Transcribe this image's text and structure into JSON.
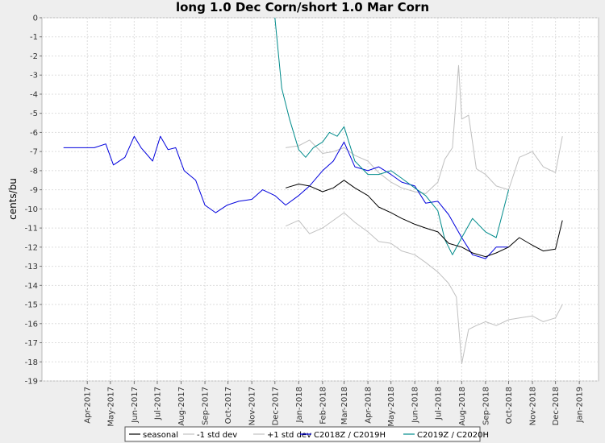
{
  "chart_data": {
    "type": "line",
    "title": "long 1.0 Dec Corn/short 1.0 Mar Corn",
    "ylabel": "cents/bu",
    "xlabel": "",
    "ylim": [
      -19,
      0
    ],
    "yticks": [
      "0",
      "-1",
      "-2",
      "-3",
      "-4",
      "-5",
      "-6",
      "-7",
      "-8",
      "-9",
      "-10",
      "-11",
      "-12",
      "-13",
      "-14",
      "-15",
      "-16",
      "-17",
      "-18",
      "-19"
    ],
    "xticks": [
      "Apr-2017",
      "May-2017",
      "Jun-2017",
      "Jul-2017",
      "Aug-2017",
      "Sep-2017",
      "Oct-2017",
      "Nov-2017",
      "Dec-2017",
      "Jan-2018",
      "Feb-2018",
      "Mar-2018",
      "Apr-2018",
      "May-2018",
      "Jun-2018",
      "Jul-2018",
      "Aug-2018",
      "Sep-2018",
      "Oct-2018",
      "Nov-2018",
      "Dec-2018",
      "Jan-2019"
    ],
    "grid": true,
    "legend_position": "bottom",
    "series": [
      {
        "name": "seasonal",
        "color": "#000000",
        "x": [
          "2017-12-15",
          "2018-01-01",
          "2018-01-15",
          "2018-02-01",
          "2018-02-15",
          "2018-03-01",
          "2018-03-15",
          "2018-04-01",
          "2018-04-15",
          "2018-05-01",
          "2018-05-15",
          "2018-06-01",
          "2018-06-15",
          "2018-07-01",
          "2018-07-15",
          "2018-08-01",
          "2018-08-15",
          "2018-09-01",
          "2018-09-15",
          "2018-10-01",
          "2018-10-15",
          "2018-11-01",
          "2018-11-15",
          "2018-12-01",
          "2018-12-10"
        ],
        "values": [
          -8.9,
          -8.7,
          -8.8,
          -9.1,
          -8.9,
          -8.5,
          -8.9,
          -9.3,
          -9.9,
          -10.2,
          -10.5,
          -10.8,
          -11.0,
          -11.2,
          -11.8,
          -12.0,
          -12.3,
          -12.5,
          -12.3,
          -12.0,
          -11.5,
          -11.9,
          -12.2,
          -12.1,
          -10.6
        ]
      },
      {
        "name": "-1 std dev",
        "color": "#c0c0c0",
        "x": [
          "2017-12-15",
          "2018-01-01",
          "2018-01-15",
          "2018-02-01",
          "2018-02-15",
          "2018-03-01",
          "2018-03-15",
          "2018-04-01",
          "2018-04-15",
          "2018-05-01",
          "2018-05-15",
          "2018-06-01",
          "2018-06-15",
          "2018-07-01",
          "2018-07-15",
          "2018-07-25",
          "2018-08-01",
          "2018-08-10",
          "2018-08-20",
          "2018-09-01",
          "2018-09-15",
          "2018-10-01",
          "2018-10-15",
          "2018-11-01",
          "2018-11-15",
          "2018-12-01",
          "2018-12-10"
        ],
        "values": [
          -10.9,
          -10.6,
          -11.3,
          -11.0,
          -10.6,
          -10.2,
          -10.7,
          -11.2,
          -11.7,
          -11.8,
          -12.2,
          -12.4,
          -12.8,
          -13.3,
          -13.9,
          -14.6,
          -18.1,
          -16.3,
          -16.1,
          -15.9,
          -16.1,
          -15.8,
          -15.7,
          -15.6,
          -15.9,
          -15.7,
          -15.0
        ]
      },
      {
        "name": "+1 std dev",
        "color": "#c0c0c0",
        "x": [
          "2017-12-15",
          "2018-01-01",
          "2018-01-15",
          "2018-02-01",
          "2018-02-15",
          "2018-03-01",
          "2018-03-15",
          "2018-04-01",
          "2018-04-15",
          "2018-05-01",
          "2018-05-15",
          "2018-06-01",
          "2018-06-15",
          "2018-07-01",
          "2018-07-10",
          "2018-07-20",
          "2018-07-28",
          "2018-08-01",
          "2018-08-10",
          "2018-08-20",
          "2018-09-01",
          "2018-09-15",
          "2018-10-01",
          "2018-10-15",
          "2018-11-01",
          "2018-11-15",
          "2018-12-01",
          "2018-12-10"
        ],
        "values": [
          -6.8,
          -6.7,
          -6.4,
          -7.1,
          -7.0,
          -6.8,
          -7.2,
          -7.5,
          -8.1,
          -8.6,
          -8.9,
          -9.1,
          -9.2,
          -8.6,
          -7.4,
          -6.8,
          -2.5,
          -5.3,
          -5.1,
          -7.9,
          -8.2,
          -8.8,
          -9.0,
          -7.3,
          -7.0,
          -7.8,
          -8.1,
          -6.2
        ]
      },
      {
        "name": "C2018Z / C2019H",
        "color": "#0000dd",
        "x": [
          "2017-03-01",
          "2017-03-20",
          "2017-04-10",
          "2017-04-25",
          "2017-05-05",
          "2017-05-20",
          "2017-06-01",
          "2017-06-10",
          "2017-06-25",
          "2017-07-05",
          "2017-07-15",
          "2017-07-25",
          "2017-08-05",
          "2017-08-20",
          "2017-09-01",
          "2017-09-15",
          "2017-09-30",
          "2017-10-15",
          "2017-11-01",
          "2017-11-15",
          "2017-12-01",
          "2017-12-15",
          "2018-01-01",
          "2018-01-15",
          "2018-02-01",
          "2018-02-15",
          "2018-03-01",
          "2018-03-15",
          "2018-04-01",
          "2018-04-15",
          "2018-05-01",
          "2018-05-15",
          "2018-06-01",
          "2018-06-15",
          "2018-07-01",
          "2018-07-15",
          "2018-08-01",
          "2018-08-15",
          "2018-09-01",
          "2018-09-15",
          "2018-10-01"
        ],
        "values": [
          -6.8,
          -6.8,
          -6.8,
          -6.6,
          -7.7,
          -7.3,
          -6.2,
          -6.8,
          -7.5,
          -6.2,
          -6.9,
          -6.8,
          -8.0,
          -8.5,
          -9.8,
          -10.2,
          -9.8,
          -9.6,
          -9.5,
          -9.0,
          -9.3,
          -9.8,
          -9.3,
          -8.8,
          -8.0,
          -7.5,
          -6.5,
          -7.8,
          -8.0,
          -7.8,
          -8.2,
          -8.6,
          -8.8,
          -9.7,
          -9.6,
          -10.3,
          -11.5,
          -12.4,
          -12.6,
          -12.0,
          -12.0
        ]
      },
      {
        "name": "C2019Z / C2020H",
        "color": "#008b8b",
        "x": [
          "2017-12-01",
          "2017-12-10",
          "2017-12-20",
          "2018-01-01",
          "2018-01-10",
          "2018-01-20",
          "2018-02-01",
          "2018-02-10",
          "2018-02-20",
          "2018-03-01",
          "2018-03-15",
          "2018-04-01",
          "2018-04-15",
          "2018-05-01",
          "2018-05-15",
          "2018-06-01",
          "2018-06-15",
          "2018-07-01",
          "2018-07-10",
          "2018-07-20",
          "2018-08-01",
          "2018-08-15",
          "2018-09-01",
          "2018-09-15",
          "2018-10-01"
        ],
        "values": [
          0.0,
          -3.7,
          -5.3,
          -6.9,
          -7.3,
          -6.8,
          -6.5,
          -6.0,
          -6.2,
          -5.7,
          -7.5,
          -8.2,
          -8.2,
          -8.0,
          -8.4,
          -8.9,
          -9.3,
          -10.1,
          -11.6,
          -12.4,
          -11.5,
          -10.5,
          -11.2,
          -11.5,
          -9.0
        ]
      }
    ]
  }
}
